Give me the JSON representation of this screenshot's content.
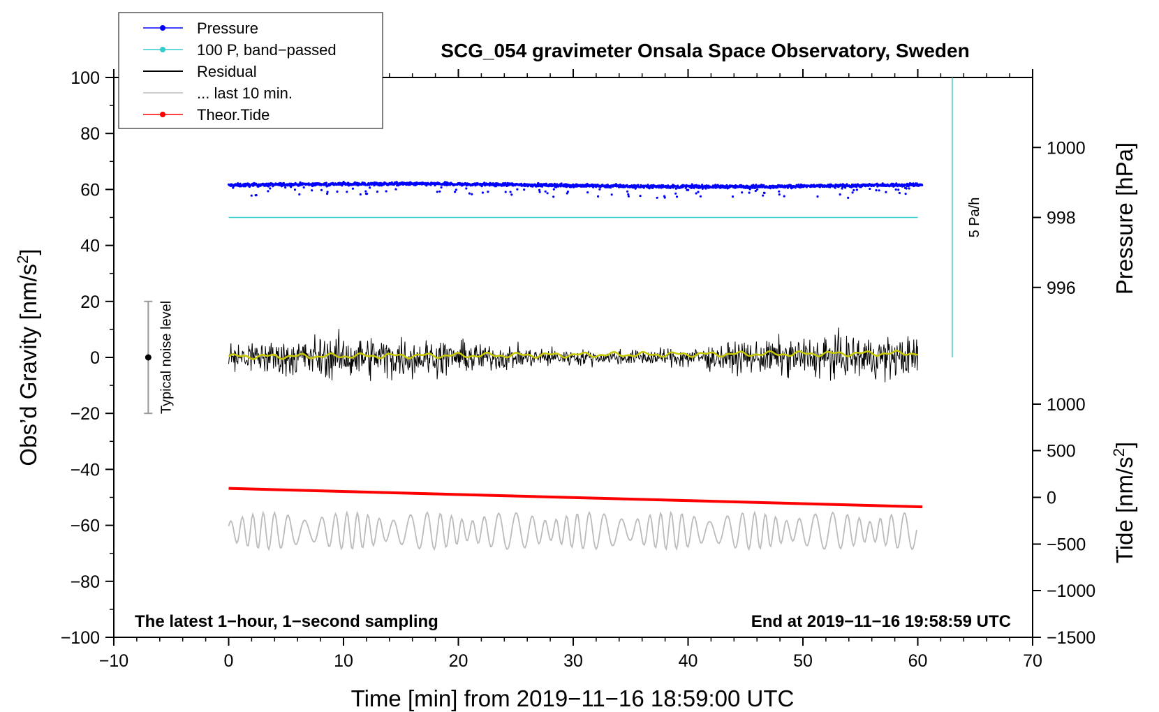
{
  "chart_data": {
    "type": "line",
    "title": "SCG_054 gravimeter Onsala Space Observatory, Sweden",
    "xlabel": "Time [min] from 2019−11−16 18:59:00 UTC",
    "ylabel_left": "Obs’d Gravity [nm/s",
    "ylabel_left_sup": "2",
    "ylabel_left_end": "]",
    "ylabel_right_pressure": "Pressure [hPa]",
    "ylabel_right_tide": "Tide [nm/s",
    "ylabel_right_tide_sup": "2",
    "ylabel_right_tide_end": "]",
    "xlim": [
      -10,
      70
    ],
    "ylim": [
      -100,
      100
    ],
    "x_ticks": [
      -10,
      0,
      10,
      20,
      30,
      40,
      50,
      60,
      70
    ],
    "x_tick_labels": [
      "−10",
      "0",
      "10",
      "20",
      "30",
      "40",
      "50",
      "60",
      "70"
    ],
    "y_ticks": [
      -100,
      -80,
      -60,
      -40,
      -20,
      0,
      20,
      40,
      60,
      80,
      100
    ],
    "y_tick_labels": [
      "−100",
      "−80",
      "−60",
      "−40",
      "−20",
      "0",
      "20",
      "40",
      "60",
      "80",
      "100"
    ],
    "pressure_ticks": [
      996,
      998,
      1000
    ],
    "pressure_tick_labels": [
      "996",
      "998",
      "1000"
    ],
    "pressure_tick_y": [
      25,
      50,
      75
    ],
    "tide_ticks": [
      -1500,
      -1000,
      -500,
      0,
      500,
      1000
    ],
    "tide_tick_labels": [
      "−1500",
      "−1000",
      "−500",
      "0",
      "500",
      "1000"
    ],
    "tide_tick_y": [
      -100,
      -83.3,
      -66.7,
      -50,
      -33.3,
      -16.7
    ],
    "legend": [
      {
        "label": "Pressure",
        "color": "#0000ff",
        "marker": true
      },
      {
        "label": "100 P, band−passed",
        "color": "#33cccc",
        "marker": true
      },
      {
        "label": "Residual",
        "color": "#000000",
        "marker": false
      },
      {
        "label": "... last 10 min.",
        "color": "#bbbbbb",
        "marker": false
      },
      {
        "label": "Theor.Tide",
        "color": "#ff0000",
        "marker": true
      }
    ],
    "notes": {
      "left": "The latest 1−hour, 1−second sampling",
      "right": "End at 2019−11−16 19:58:59 UTC",
      "noise": "Typical noise level",
      "scale": "5 Pa/h"
    },
    "noise_bar": {
      "x": -7,
      "y": 0,
      "low": -20,
      "high": 20
    },
    "scale_bar": {
      "x": 63,
      "y0": 0,
      "y1": 100
    },
    "series": [
      {
        "name": "Pressure",
        "color": "#0000ff",
        "kind": "dots",
        "x_range": [
          0,
          60.4
        ],
        "mean": 61.5,
        "spread": 0.8
      },
      {
        "name": "100 P, band−passed",
        "color": "#33cccc",
        "kind": "flat",
        "x_range": [
          0,
          60
        ],
        "y": 50
      },
      {
        "name": "Residual",
        "color": "#000000",
        "kind": "noise",
        "x_range": [
          0,
          60
        ],
        "mean": 0,
        "spread": 4.5
      },
      {
        "name": "Residual (smoothed)",
        "color": "#c8c800",
        "kind": "smooth",
        "x_range": [
          0,
          60
        ],
        "mean": 0.3
      },
      {
        "name": "... last 10 min.",
        "color": "#bbbbbb",
        "kind": "osc",
        "x_range": [
          0,
          60
        ],
        "mean": -62,
        "spread": 5.5
      },
      {
        "name": "Theor.Tide",
        "color": "#ff0000",
        "kind": "line",
        "x": [
          0,
          60.4
        ],
        "y": [
          -46.8,
          -53.4
        ]
      }
    ]
  }
}
